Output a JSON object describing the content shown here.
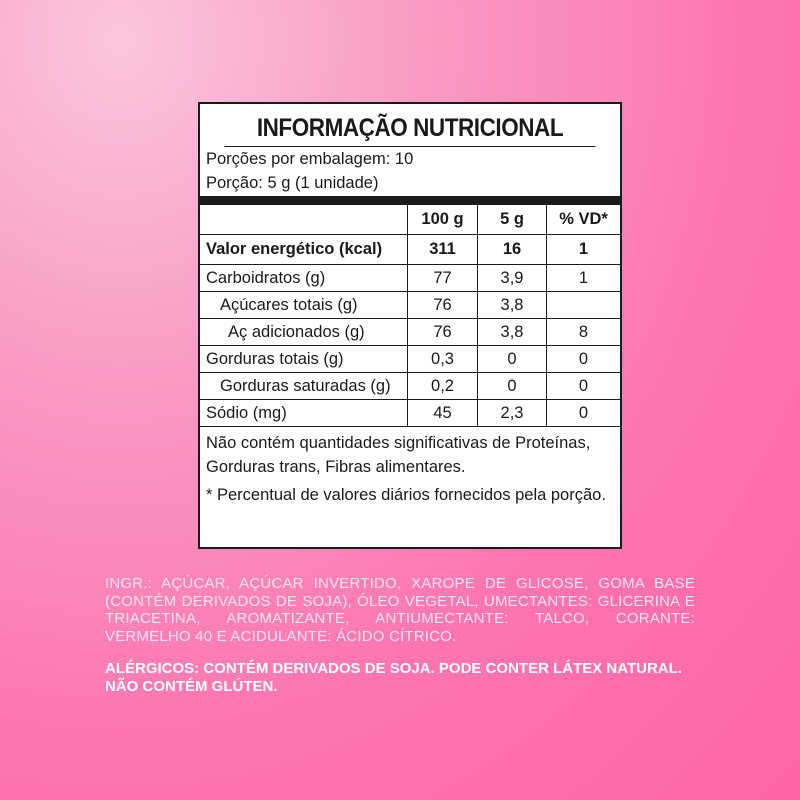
{
  "label": {
    "title": "INFORMAÇÃO NUTRICIONAL",
    "servings_per_package": "Porções por embalagem: 10",
    "serving_size": "Porção: 5 g (1 unidade)",
    "columns": [
      "",
      "100 g",
      "5 g",
      "% VD*"
    ],
    "rows": [
      {
        "name": "Valor energético (kcal)",
        "per100g": "311",
        "perServing": "16",
        "vd": "1"
      },
      {
        "name": "Carboidratos (g)",
        "per100g": "77",
        "perServing": "3,9",
        "vd": "1"
      },
      {
        "name": "Açúcares totais (g)",
        "per100g": "76",
        "perServing": "3,8",
        "vd": ""
      },
      {
        "name": "Aç adicionados (g)",
        "per100g": "76",
        "perServing": "3,8",
        "vd": "8"
      },
      {
        "name": "Gorduras totais (g)",
        "per100g": "0,3",
        "perServing": "0",
        "vd": "0"
      },
      {
        "name": "Gorduras saturadas (g)",
        "per100g": "0,2",
        "perServing": "0",
        "vd": "0"
      },
      {
        "name": "Sódio (mg)",
        "per100g": "45",
        "perServing": "2,3",
        "vd": "0"
      }
    ],
    "note_insignificant": "Não contém quantidades significativas de Proteínas, Gorduras trans, Fibras alimentares.",
    "note_vd": "* Percentual de valores diários fornecidos pela porção."
  },
  "ingredients": "INGR.: AÇÚCAR, AÇÚCAR INVERTIDO, XAROPE DE GLICOSE, GOMA BASE (CONTÉM DERIVADOS DE SOJA), ÓLEO VEGETAL, UMECTANTES: GLICERINA E TRIACETINA, AROMATIZANTE, ANTIUMECTANTE: TALCO, CORANTE: VERMELHO 40 E ACIDULANTE: ÁCIDO CÍTRICO.",
  "allergens": "ALÉRGICOS: CONTÉM DERIVADOS DE SOJA. PODE CONTER LÁTEX NATURAL. NÃO CONTÉM GLÚTEN."
}
